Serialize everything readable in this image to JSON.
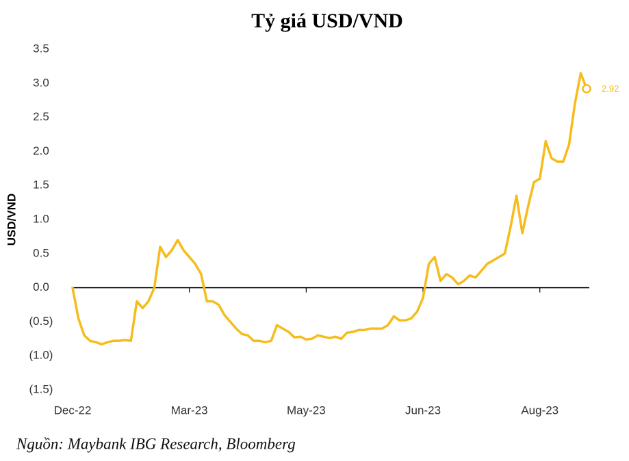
{
  "chart_data": {
    "type": "line",
    "title": "Tỷ giá USD/VND",
    "y_label": "USD/VND",
    "source": "Nguồn: Maybank IBG Research, Bloomberg",
    "categories": [
      "Dec-22",
      null,
      null,
      null,
      null,
      null,
      null,
      null,
      null,
      null,
      null,
      null,
      null,
      null,
      null,
      null,
      null,
      null,
      null,
      null,
      "Mar-23",
      null,
      null,
      null,
      null,
      null,
      null,
      null,
      null,
      null,
      null,
      null,
      null,
      null,
      null,
      null,
      null,
      null,
      null,
      null,
      "May-23",
      null,
      null,
      null,
      null,
      null,
      null,
      null,
      null,
      null,
      null,
      null,
      null,
      null,
      null,
      null,
      null,
      null,
      null,
      null,
      "Jun-23",
      null,
      null,
      null,
      null,
      null,
      null,
      null,
      null,
      null,
      null,
      null,
      null,
      null,
      null,
      null,
      null,
      null,
      null,
      null,
      "Aug-23",
      null,
      null,
      null,
      null,
      null,
      null,
      null,
      null
    ],
    "series": [
      {
        "name": "USD/VND",
        "color": "#f5bc1c",
        "values": [
          0.0,
          -0.45,
          -0.7,
          -0.78,
          -0.8,
          -0.83,
          -0.8,
          -0.78,
          -0.78,
          -0.77,
          -0.78,
          -0.2,
          -0.3,
          -0.2,
          0.0,
          0.6,
          0.45,
          0.55,
          0.7,
          0.55,
          0.45,
          0.35,
          0.2,
          -0.2,
          -0.2,
          -0.25,
          -0.4,
          -0.5,
          -0.6,
          -0.68,
          -0.7,
          -0.78,
          -0.78,
          -0.8,
          -0.78,
          -0.55,
          -0.6,
          -0.65,
          -0.73,
          -0.72,
          -0.76,
          -0.75,
          -0.7,
          -0.72,
          -0.74,
          -0.72,
          -0.75,
          -0.66,
          -0.65,
          -0.62,
          -0.62,
          -0.6,
          -0.6,
          -0.6,
          -0.55,
          -0.42,
          -0.48,
          -0.48,
          -0.45,
          -0.35,
          -0.15,
          0.35,
          0.45,
          0.1,
          0.2,
          0.15,
          0.05,
          0.1,
          0.18,
          0.15,
          0.25,
          0.35,
          0.4,
          0.45,
          0.5,
          0.9,
          1.35,
          0.8,
          1.2,
          1.55,
          1.6,
          2.15,
          1.9,
          1.85,
          1.85,
          2.1,
          2.7,
          3.15,
          2.92
        ]
      }
    ],
    "ylim": [
      -1.5,
      3.5
    ],
    "yticks": [
      3.5,
      {
        "value": 3.0,
        "label": "3.0"
      },
      2.5,
      {
        "value": 2.0,
        "label": "2.0"
      },
      1.5,
      {
        "value": 1.0,
        "label": "1.0"
      },
      0.5,
      {
        "value": 0.0,
        "label": "0.0"
      },
      {
        "value": -0.5,
        "label": "(0.5)"
      },
      {
        "value": -1.0,
        "label": "(1.0)"
      },
      {
        "value": -1.5,
        "label": "(1.5)"
      }
    ],
    "grid": false
  }
}
